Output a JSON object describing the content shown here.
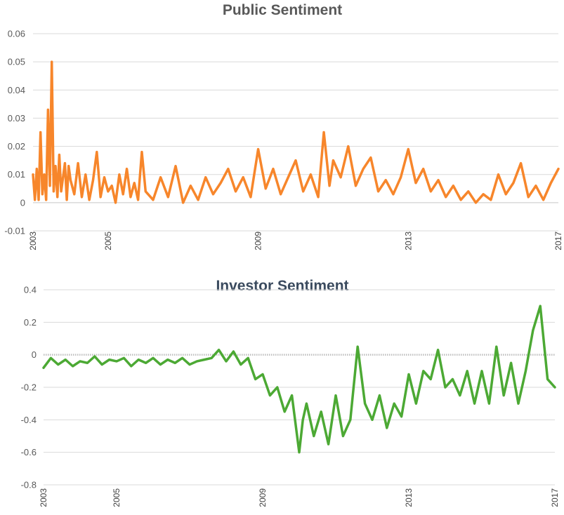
{
  "chart_data": [
    {
      "type": "line",
      "title": "Public Sentiment",
      "xlabel": "",
      "ylabel": "",
      "x_tick_labels": [
        "2003",
        "2005",
        "2009",
        "2013",
        "2017"
      ],
      "x_ticks": [
        2003,
        2005,
        2009,
        2013,
        2017
      ],
      "xlim": [
        2003,
        2017
      ],
      "y_tick_labels": [
        "0.06",
        "0.05",
        "0.04",
        "0.03",
        "0.02",
        "0.01",
        "0",
        "-0.01"
      ],
      "y_ticks": [
        0.06,
        0.05,
        0.04,
        0.03,
        0.02,
        0.01,
        0,
        -0.01
      ],
      "ylim": [
        -0.01,
        0.06
      ],
      "grid": true,
      "colors": {
        "series": "#f7862b"
      },
      "series": [
        {
          "x": [
            2003.0,
            2003.05,
            2003.1,
            2003.15,
            2003.2,
            2003.25,
            2003.3,
            2003.35,
            2003.4,
            2003.45,
            2003.5,
            2003.55,
            2003.6,
            2003.65,
            2003.7,
            2003.75,
            2003.8,
            2003.85,
            2003.9,
            2003.95,
            2004.0,
            2004.1,
            2004.2,
            2004.3,
            2004.4,
            2004.5,
            2004.6,
            2004.7,
            2004.8,
            2004.9,
            2005.0,
            2005.1,
            2005.2,
            2005.3,
            2005.4,
            2005.5,
            2005.6,
            2005.7,
            2005.8,
            2005.9,
            2006.0,
            2006.2,
            2006.4,
            2006.6,
            2006.8,
            2007.0,
            2007.2,
            2007.4,
            2007.6,
            2007.8,
            2008.0,
            2008.2,
            2008.4,
            2008.6,
            2008.8,
            2009.0,
            2009.2,
            2009.4,
            2009.6,
            2009.8,
            2010.0,
            2010.2,
            2010.4,
            2010.6,
            2010.75,
            2010.9,
            2011.0,
            2011.2,
            2011.4,
            2011.6,
            2011.8,
            2012.0,
            2012.2,
            2012.4,
            2012.6,
            2012.8,
            2013.0,
            2013.2,
            2013.4,
            2013.6,
            2013.8,
            2014.0,
            2014.2,
            2014.4,
            2014.6,
            2014.8,
            2015.0,
            2015.2,
            2015.4,
            2015.6,
            2015.8,
            2016.0,
            2016.2,
            2016.4,
            2016.6,
            2016.8,
            2017.0
          ],
          "values": [
            0.01,
            0.001,
            0.012,
            0.001,
            0.025,
            0.003,
            0.01,
            0.001,
            0.033,
            0.006,
            0.05,
            0.004,
            0.013,
            0.002,
            0.017,
            0.004,
            0.009,
            0.014,
            0.001,
            0.013,
            0.008,
            0.003,
            0.014,
            0.002,
            0.01,
            0.001,
            0.008,
            0.018,
            0.002,
            0.009,
            0.004,
            0.006,
            0.0,
            0.01,
            0.003,
            0.012,
            0.002,
            0.007,
            0.001,
            0.018,
            0.004,
            0.001,
            0.009,
            0.002,
            0.013,
            0.0,
            0.006,
            0.001,
            0.009,
            0.003,
            0.007,
            0.012,
            0.004,
            0.009,
            0.002,
            0.019,
            0.005,
            0.012,
            0.003,
            0.009,
            0.015,
            0.004,
            0.01,
            0.002,
            0.025,
            0.006,
            0.015,
            0.009,
            0.02,
            0.006,
            0.012,
            0.016,
            0.004,
            0.008,
            0.003,
            0.009,
            0.019,
            0.007,
            0.012,
            0.004,
            0.008,
            0.002,
            0.006,
            0.001,
            0.004,
            0.0,
            0.003,
            0.001,
            0.01,
            0.003,
            0.007,
            0.014,
            0.002,
            0.006,
            0.001,
            0.007,
            0.012
          ]
        }
      ]
    },
    {
      "type": "line",
      "title": "Investor Sentiment",
      "xlabel": "",
      "ylabel": "",
      "x_tick_labels": [
        "2003",
        "2005",
        "2009",
        "2013",
        "2017"
      ],
      "x_ticks": [
        2003,
        2005,
        2009,
        2013,
        2017
      ],
      "xlim": [
        2003,
        2017
      ],
      "y_tick_labels": [
        "0.4",
        "0.2",
        "0",
        "-0.2",
        "-0.4",
        "-0.6",
        "-0.8"
      ],
      "y_ticks": [
        0.4,
        0.2,
        0,
        -0.2,
        -0.4,
        -0.6,
        -0.8
      ],
      "ylim": [
        -0.8,
        0.4
      ],
      "grid": true,
      "colors": {
        "series": "#4ca934"
      },
      "series": [
        {
          "x": [
            2003.0,
            2003.2,
            2003.4,
            2003.6,
            2003.8,
            2004.0,
            2004.2,
            2004.4,
            2004.6,
            2004.8,
            2005.0,
            2005.2,
            2005.4,
            2005.6,
            2005.8,
            2006.0,
            2006.2,
            2006.4,
            2006.6,
            2006.8,
            2007.0,
            2007.2,
            2007.4,
            2007.6,
            2007.8,
            2008.0,
            2008.2,
            2008.4,
            2008.6,
            2008.8,
            2009.0,
            2009.2,
            2009.4,
            2009.6,
            2009.8,
            2010.0,
            2010.1,
            2010.2,
            2010.4,
            2010.6,
            2010.8,
            2011.0,
            2011.2,
            2011.4,
            2011.6,
            2011.8,
            2012.0,
            2012.2,
            2012.4,
            2012.6,
            2012.8,
            2013.0,
            2013.2,
            2013.4,
            2013.6,
            2013.8,
            2014.0,
            2014.2,
            2014.4,
            2014.6,
            2014.8,
            2015.0,
            2015.2,
            2015.4,
            2015.6,
            2015.8,
            2016.0,
            2016.2,
            2016.4,
            2016.6,
            2016.8,
            2017.0
          ],
          "values": [
            -0.08,
            -0.02,
            -0.06,
            -0.03,
            -0.07,
            -0.04,
            -0.05,
            -0.01,
            -0.06,
            -0.03,
            -0.04,
            -0.02,
            -0.07,
            -0.03,
            -0.05,
            -0.02,
            -0.06,
            -0.03,
            -0.05,
            -0.02,
            -0.06,
            -0.04,
            -0.03,
            -0.02,
            0.03,
            -0.04,
            0.02,
            -0.06,
            -0.02,
            -0.15,
            -0.12,
            -0.25,
            -0.2,
            -0.35,
            -0.25,
            -0.6,
            -0.4,
            -0.3,
            -0.5,
            -0.35,
            -0.55,
            -0.25,
            -0.5,
            -0.4,
            0.05,
            -0.3,
            -0.4,
            -0.25,
            -0.45,
            -0.3,
            -0.38,
            -0.12,
            -0.3,
            -0.1,
            -0.15,
            0.03,
            -0.2,
            -0.15,
            -0.25,
            -0.1,
            -0.3,
            -0.1,
            -0.3,
            0.05,
            -0.25,
            -0.05,
            -0.3,
            -0.1,
            0.15,
            0.3,
            -0.15,
            -0.2
          ]
        }
      ]
    }
  ]
}
